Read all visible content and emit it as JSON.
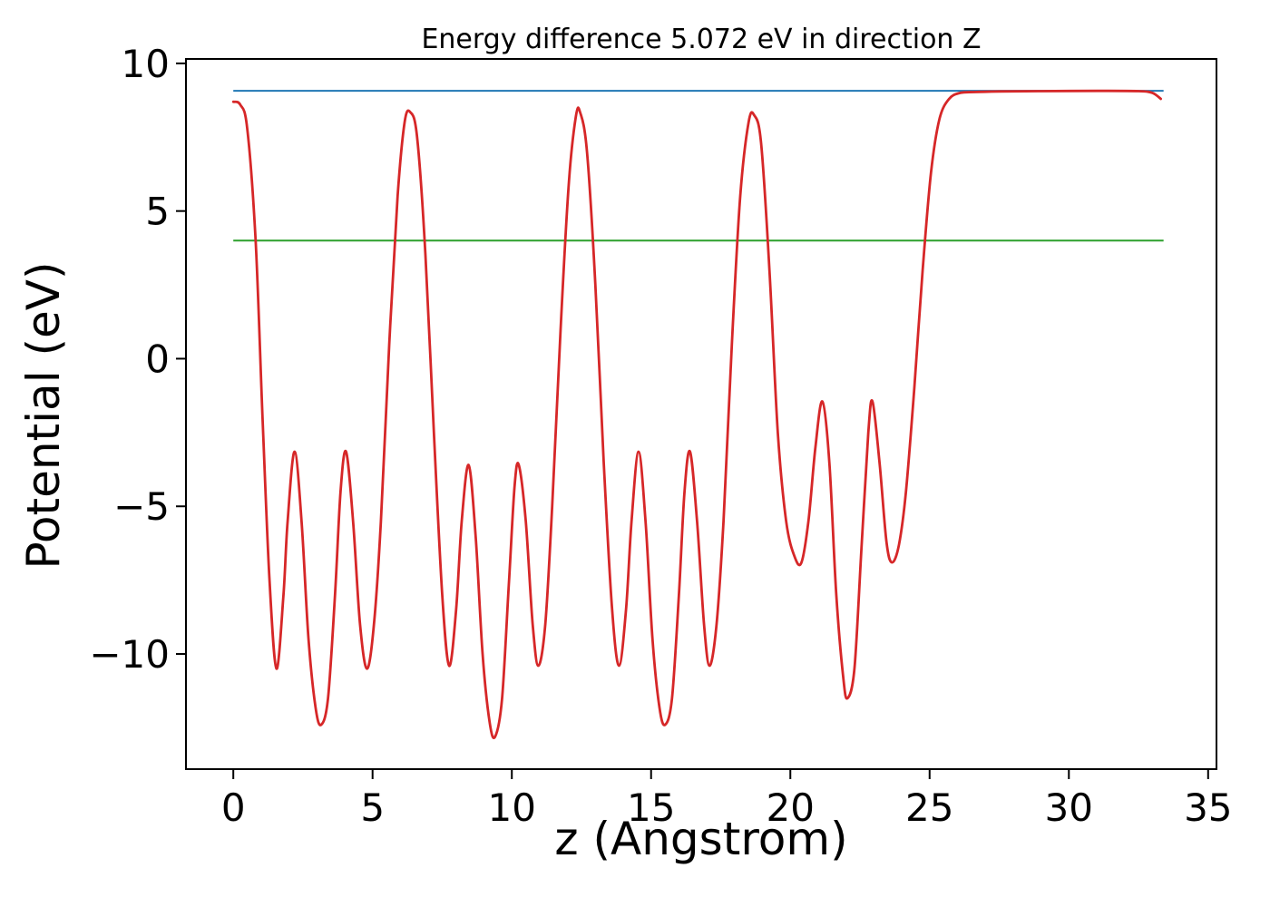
{
  "page": {
    "background": "#ffffff"
  },
  "chart_data": {
    "type": "line",
    "title": "Energy difference 5.072 eV in direction Z",
    "xlabel": "z (Angstrom)",
    "ylabel": "Potential (eV)",
    "xlim": [
      -1.7,
      35.3
    ],
    "ylim": [
      -13.9,
      10.15
    ],
    "x_ticks": [
      0,
      5,
      10,
      15,
      20,
      25,
      30,
      35
    ],
    "y_ticks": [
      -10,
      -5,
      0,
      5,
      10
    ],
    "grid": false,
    "legend": "none",
    "energy_difference_eV": 5.072,
    "direction": "Z",
    "axis_color": "#000000",
    "series": [
      {
        "name": "vacuum-level-line",
        "kind": "hline",
        "color": "#1f77b4",
        "y": 9.072,
        "x_range": [
          0.0,
          33.4
        ],
        "linewidth": 2
      },
      {
        "name": "reference-level-line",
        "kind": "hline",
        "color": "#2ca02c",
        "y": 4.0,
        "x_range": [
          0.0,
          33.4
        ],
        "linewidth": 2
      },
      {
        "name": "planar-averaged-potential",
        "kind": "curve",
        "color": "#d62728",
        "linewidth": 2.8,
        "points": [
          [
            0.0,
            8.7
          ],
          [
            0.25,
            8.6
          ],
          [
            0.5,
            7.8
          ],
          [
            0.8,
            4.0
          ],
          [
            1.05,
            -2.0
          ],
          [
            1.3,
            -7.5
          ],
          [
            1.55,
            -10.5
          ],
          [
            1.8,
            -8.0
          ],
          [
            1.95,
            -5.5
          ],
          [
            2.2,
            -3.15
          ],
          [
            2.45,
            -5.5
          ],
          [
            2.7,
            -9.5
          ],
          [
            2.95,
            -11.8
          ],
          [
            3.15,
            -12.4
          ],
          [
            3.4,
            -11.5
          ],
          [
            3.65,
            -8.0
          ],
          [
            3.85,
            -4.5
          ],
          [
            4.05,
            -3.15
          ],
          [
            4.3,
            -5.5
          ],
          [
            4.55,
            -9.0
          ],
          [
            4.8,
            -10.5
          ],
          [
            5.05,
            -9.0
          ],
          [
            5.3,
            -5.5
          ],
          [
            5.6,
            0.5
          ],
          [
            5.9,
            5.5
          ],
          [
            6.15,
            8.0
          ],
          [
            6.35,
            8.35
          ],
          [
            6.6,
            7.5
          ],
          [
            6.9,
            3.5
          ],
          [
            7.2,
            -2.5
          ],
          [
            7.5,
            -8.0
          ],
          [
            7.75,
            -10.4
          ],
          [
            8.0,
            -8.5
          ],
          [
            8.2,
            -5.5
          ],
          [
            8.45,
            -3.6
          ],
          [
            8.7,
            -6.0
          ],
          [
            8.95,
            -10.0
          ],
          [
            9.2,
            -12.3
          ],
          [
            9.4,
            -12.8
          ],
          [
            9.65,
            -11.5
          ],
          [
            9.9,
            -7.5
          ],
          [
            10.1,
            -4.3
          ],
          [
            10.25,
            -3.6
          ],
          [
            10.5,
            -5.5
          ],
          [
            10.75,
            -9.0
          ],
          [
            10.95,
            -10.4
          ],
          [
            11.2,
            -9.0
          ],
          [
            11.45,
            -5.0
          ],
          [
            11.75,
            1.0
          ],
          [
            12.05,
            6.0
          ],
          [
            12.3,
            8.2
          ],
          [
            12.45,
            8.35
          ],
          [
            12.7,
            7.0
          ],
          [
            13.0,
            2.5
          ],
          [
            13.3,
            -3.5
          ],
          [
            13.6,
            -8.5
          ],
          [
            13.85,
            -10.4
          ],
          [
            14.1,
            -8.5
          ],
          [
            14.3,
            -5.5
          ],
          [
            14.55,
            -3.15
          ],
          [
            14.8,
            -5.5
          ],
          [
            15.05,
            -9.5
          ],
          [
            15.3,
            -11.8
          ],
          [
            15.5,
            -12.4
          ],
          [
            15.75,
            -11.5
          ],
          [
            16.0,
            -8.0
          ],
          [
            16.2,
            -4.5
          ],
          [
            16.4,
            -3.15
          ],
          [
            16.65,
            -5.5
          ],
          [
            16.9,
            -9.0
          ],
          [
            17.1,
            -10.4
          ],
          [
            17.35,
            -9.0
          ],
          [
            17.6,
            -5.5
          ],
          [
            17.9,
            0.5
          ],
          [
            18.2,
            5.5
          ],
          [
            18.5,
            8.0
          ],
          [
            18.7,
            8.25
          ],
          [
            18.95,
            7.3
          ],
          [
            19.25,
            3.0
          ],
          [
            19.55,
            -2.5
          ],
          [
            19.85,
            -5.5
          ],
          [
            20.15,
            -6.7
          ],
          [
            20.4,
            -6.9
          ],
          [
            20.65,
            -5.5
          ],
          [
            20.9,
            -3.0
          ],
          [
            21.15,
            -1.45
          ],
          [
            21.4,
            -3.5
          ],
          [
            21.65,
            -8.0
          ],
          [
            21.9,
            -10.8
          ],
          [
            22.05,
            -11.5
          ],
          [
            22.3,
            -10.5
          ],
          [
            22.55,
            -6.5
          ],
          [
            22.8,
            -2.5
          ],
          [
            22.95,
            -1.45
          ],
          [
            23.2,
            -3.5
          ],
          [
            23.45,
            -6.2
          ],
          [
            23.65,
            -6.9
          ],
          [
            23.9,
            -6.3
          ],
          [
            24.15,
            -4.5
          ],
          [
            24.45,
            -1.0
          ],
          [
            24.75,
            3.0
          ],
          [
            25.05,
            6.3
          ],
          [
            25.35,
            8.1
          ],
          [
            25.7,
            8.8
          ],
          [
            26.1,
            9.0
          ],
          [
            26.6,
            9.03
          ],
          [
            27.5,
            9.05
          ],
          [
            29.0,
            9.06
          ],
          [
            31.0,
            9.07
          ],
          [
            32.5,
            9.06
          ],
          [
            33.0,
            9.0
          ],
          [
            33.3,
            8.8
          ]
        ]
      }
    ]
  }
}
